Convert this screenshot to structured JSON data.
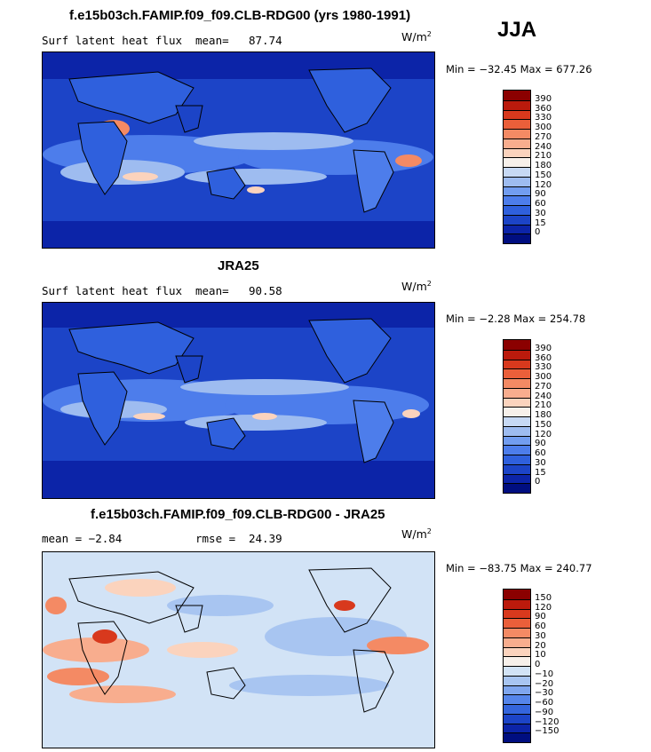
{
  "season": "JJA",
  "units_base": "W/m",
  "units_exp": "2",
  "panels": [
    {
      "title": "f.e15b03ch.FAMIP.f09_f09.CLB-RDG00 (yrs 1980-1991)",
      "left_label": "Surf latent heat flux",
      "stat_label": "mean=",
      "stat_value": "87.74",
      "minmax": "Min = −32.45 Max = 677.26",
      "colorbar": {
        "labels": [
          "390",
          "360",
          "330",
          "300",
          "270",
          "240",
          "210",
          "180",
          "150",
          "120",
          "90",
          "60",
          "30",
          "15",
          "0"
        ],
        "colors": [
          "#8b0000",
          "#bb1a0c",
          "#d8391d",
          "#ea5f3a",
          "#f48a64",
          "#f8ad8e",
          "#fbd3bd",
          "#f7f0ea",
          "#c7d9f4",
          "#9ebcf0",
          "#729df0",
          "#4d7deb",
          "#2f60dd",
          "#1c44c7",
          "#0c24a8",
          "#000e80"
        ]
      },
      "chart_data": {
        "type": "heatmap",
        "title": "f.e15b03ch.FAMIP.f09_f09.CLB-RDG00 (yrs 1980-1991)",
        "variable": "Surf latent heat flux",
        "mean": 87.74,
        "min": -32.45,
        "max": 677.26,
        "levels": [
          0,
          15,
          30,
          60,
          90,
          120,
          150,
          180,
          210,
          240,
          270,
          300,
          330,
          360,
          390
        ]
      }
    },
    {
      "title": "JRA25",
      "left_label": "Surf latent heat flux",
      "stat_label": "mean=",
      "stat_value": "90.58",
      "minmax": "Min =  −2.28 Max = 254.78",
      "colorbar": {
        "labels": [
          "390",
          "360",
          "330",
          "300",
          "270",
          "240",
          "210",
          "180",
          "150",
          "120",
          "90",
          "60",
          "30",
          "15",
          "0"
        ],
        "colors": [
          "#8b0000",
          "#bb1a0c",
          "#d8391d",
          "#ea5f3a",
          "#f48a64",
          "#f8ad8e",
          "#fbd3bd",
          "#f7f0ea",
          "#c7d9f4",
          "#9ebcf0",
          "#729df0",
          "#4d7deb",
          "#2f60dd",
          "#1c44c7",
          "#0c24a8",
          "#000e80"
        ]
      },
      "chart_data": {
        "type": "heatmap",
        "title": "JRA25",
        "variable": "Surf latent heat flux",
        "mean": 90.58,
        "min": -2.28,
        "max": 254.78,
        "levels": [
          0,
          15,
          30,
          60,
          90,
          120,
          150,
          180,
          210,
          240,
          270,
          300,
          330,
          360,
          390
        ]
      }
    },
    {
      "title": "f.e15b03ch.FAMIP.f09_f09.CLB-RDG00 - JRA25",
      "left_label": "mean =   −2.84",
      "stat_label": "rmse =",
      "stat_value": "24.39",
      "minmax": "Min = −83.75 Max = 240.77",
      "colorbar": {
        "labels": [
          "150",
          "120",
          "90",
          "60",
          "30",
          "20",
          "10",
          "0",
          "−10",
          "−20",
          "−30",
          "−60",
          "−90",
          "−120",
          "−150"
        ],
        "colors": [
          "#8b0000",
          "#bb1a0c",
          "#d8391d",
          "#ea5f3a",
          "#f48a64",
          "#f8ad8e",
          "#fbd3bd",
          "#f7f0ea",
          "#d2e3f6",
          "#a8c5f1",
          "#7fa6ee",
          "#5585ea",
          "#3465dc",
          "#1c44c7",
          "#0c24a8",
          "#000e80"
        ]
      },
      "chart_data": {
        "type": "heatmap",
        "title": "f.e15b03ch.FAMIP.f09_f09.CLB-RDG00 - JRA25",
        "mean": -2.84,
        "rmse": 24.39,
        "min": -83.75,
        "max": 240.77,
        "levels": [
          -150,
          -120,
          -90,
          -60,
          -30,
          -20,
          -10,
          0,
          10,
          20,
          30,
          60,
          90,
          120,
          150
        ]
      }
    }
  ]
}
